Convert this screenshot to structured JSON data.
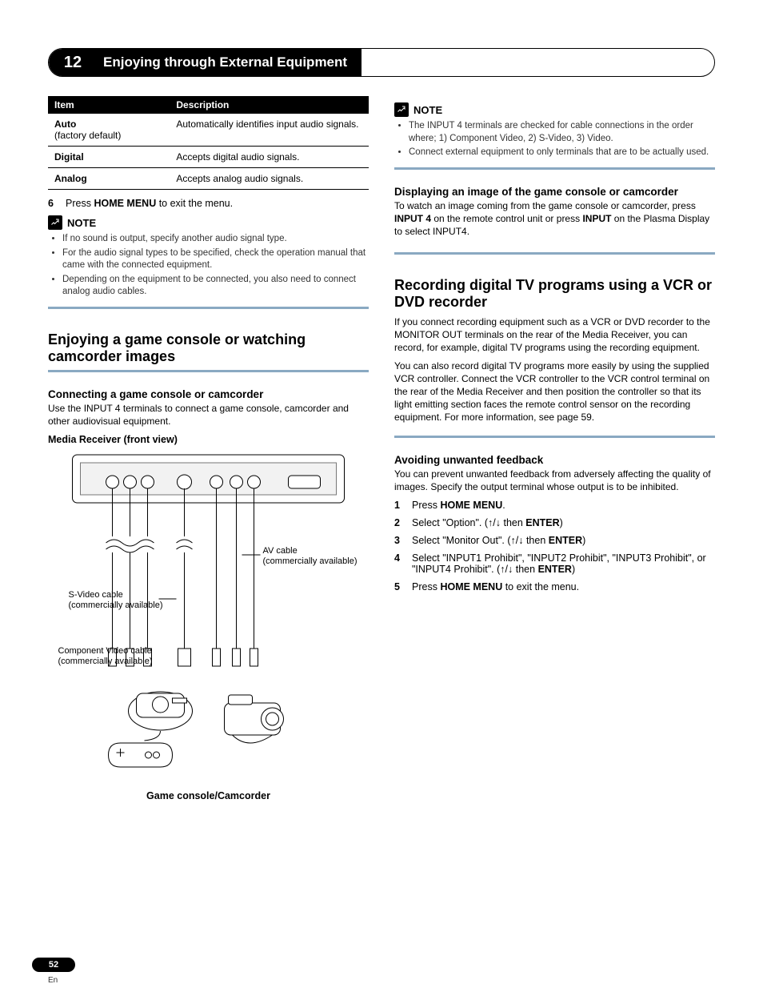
{
  "chapter": {
    "number": "12",
    "title": "Enjoying through External Equipment"
  },
  "table": {
    "headers": [
      "Item",
      "Description"
    ],
    "rows": [
      {
        "item": "Auto",
        "item2": "(factory default)",
        "desc": "Automatically identifies input audio signals."
      },
      {
        "item": "Digital",
        "item2": "",
        "desc": "Accepts digital audio signals."
      },
      {
        "item": "Analog",
        "item2": "",
        "desc": "Accepts analog audio signals."
      }
    ]
  },
  "step6": {
    "num": "6",
    "pre": "Press ",
    "bold": "HOME MENU",
    "post": " to exit the menu."
  },
  "left_note_label": "NOTE",
  "left_note_items": [
    "If no sound is output, specify another audio signal type.",
    "For the audio signal types to be specified, check the operation manual that came with the connected equipment.",
    "Depending on the equipment to be connected, you also need to connect analog audio cables."
  ],
  "sec1": {
    "title": "Enjoying a game console or watching camcorder images",
    "sub1": "Connecting a game console or camcorder",
    "sub1_body": "Use the INPUT 4 terminals to connect a game console, camcorder and other audiovisual equipment.",
    "fig_caption": "Media Receiver (front view)",
    "labels": {
      "av": "AV cable",
      "av2": "(commercially available)",
      "sv": "S-Video cable",
      "sv2": "(commercially available)",
      "cv": "Component Video cable",
      "cv2": "(commercially available)"
    },
    "device_caption": "Game console/Camcorder"
  },
  "right_note_label": "NOTE",
  "right_note_items": [
    "The INPUT 4 terminals are checked for cable connections in the order where; 1) Component Video, 2) S-Video, 3) Video.",
    "Connect external equipment to only terminals that are to be actually used."
  ],
  "sec2": {
    "sub": "Displaying an image of the game console or camcorder",
    "body_pre": "To watch an image coming from the game console or camcorder, press ",
    "body_b1": "INPUT 4",
    "body_mid": " on the remote control unit or press ",
    "body_b2": "INPUT",
    "body_post": " on the Plasma Display to select INPUT4."
  },
  "sec3": {
    "title": "Recording digital TV programs using a VCR or DVD recorder",
    "p1": "If you connect recording equipment such as a VCR or DVD recorder to the MONITOR OUT terminals on the rear of the Media Receiver, you can record, for example, digital TV programs using the recording equipment.",
    "p2": "You can also record digital TV programs more easily by using the supplied VCR controller. Connect the VCR controller to the VCR control terminal on the rear of the Media Receiver and then position the controller so that its light emitting section faces the remote control sensor on the recording equipment. For more information, see page 59."
  },
  "sec4": {
    "sub": "Avoiding unwanted feedback",
    "body": "You can prevent unwanted feedback from adversely affecting the quality of images. Specify the output terminal whose output is to be inhibited.",
    "steps": [
      {
        "n": "1",
        "parts": [
          {
            "t": "Press "
          },
          {
            "b": "HOME MENU"
          },
          {
            "t": "."
          }
        ]
      },
      {
        "n": "2",
        "parts": [
          {
            "t": "Select \"Option\". ("
          },
          {
            "sym": "↑"
          },
          {
            "t": "/"
          },
          {
            "sym": "↓"
          },
          {
            "t": " then "
          },
          {
            "b": "ENTER"
          },
          {
            "t": ")"
          }
        ]
      },
      {
        "n": "3",
        "parts": [
          {
            "t": "Select \"Monitor Out\". ("
          },
          {
            "sym": "↑"
          },
          {
            "t": "/"
          },
          {
            "sym": "↓"
          },
          {
            "t": " then "
          },
          {
            "b": "ENTER"
          },
          {
            "t": ")"
          }
        ]
      },
      {
        "n": "4",
        "parts": [
          {
            "t": "Select \"INPUT1 Prohibit\", \"INPUT2 Prohibit\", \"INPUT3 Prohibit\", or \"INPUT4 Prohibit\". ("
          },
          {
            "sym": "↑"
          },
          {
            "t": "/"
          },
          {
            "sym": "↓"
          },
          {
            "t": " then "
          },
          {
            "b": "ENTER"
          },
          {
            "t": ")"
          }
        ]
      },
      {
        "n": "5",
        "parts": [
          {
            "t": "Press "
          },
          {
            "b": "HOME MENU"
          },
          {
            "t": " to exit the menu."
          }
        ]
      }
    ]
  },
  "page_number": "52",
  "lang": "En",
  "colors": {
    "accent": "#8aa9c2"
  }
}
